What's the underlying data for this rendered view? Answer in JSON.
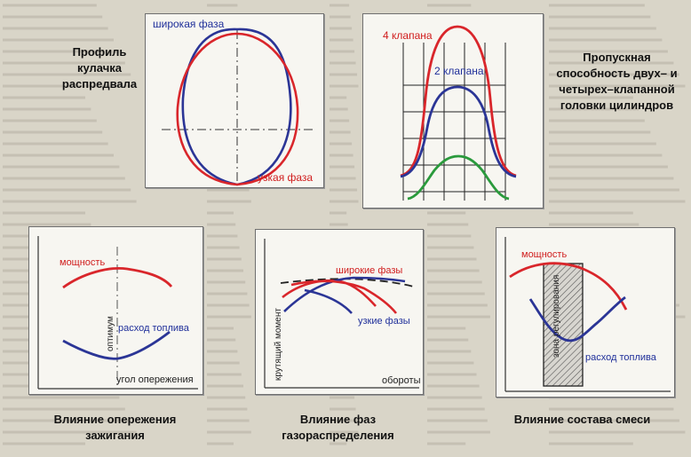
{
  "colors": {
    "red": "#d9262b",
    "blue": "#2b3596",
    "green": "#2a9a3c",
    "grid": "#222222"
  },
  "cam": {
    "caption": "Профиль кулачка распредвала",
    "wide_label": "широкая фаза",
    "narrow_label": "узкая фаза"
  },
  "valves": {
    "caption": "Пропускная способность двух– и четырех–клапанной головки цилиндров",
    "four_label": "4 клапана",
    "two_label": "2 клапана"
  },
  "ignition": {
    "caption": "Влияние опережения зажигания",
    "power_label": "мощность",
    "fuel_label": "расход топлива",
    "optimum_label": "оптимум",
    "x_label": "угол опережения"
  },
  "timing": {
    "caption": "Влияние фаз газораспределения",
    "wide_label": "широкие фазы",
    "narrow_label": "узкие фазы",
    "y_label": "крутящий момент",
    "x_label": "обороты"
  },
  "mixture": {
    "caption": "Влияние состава смеси",
    "power_label": "мощность",
    "fuel_label": "расход топлива",
    "zone_label": "зона регулирования"
  }
}
